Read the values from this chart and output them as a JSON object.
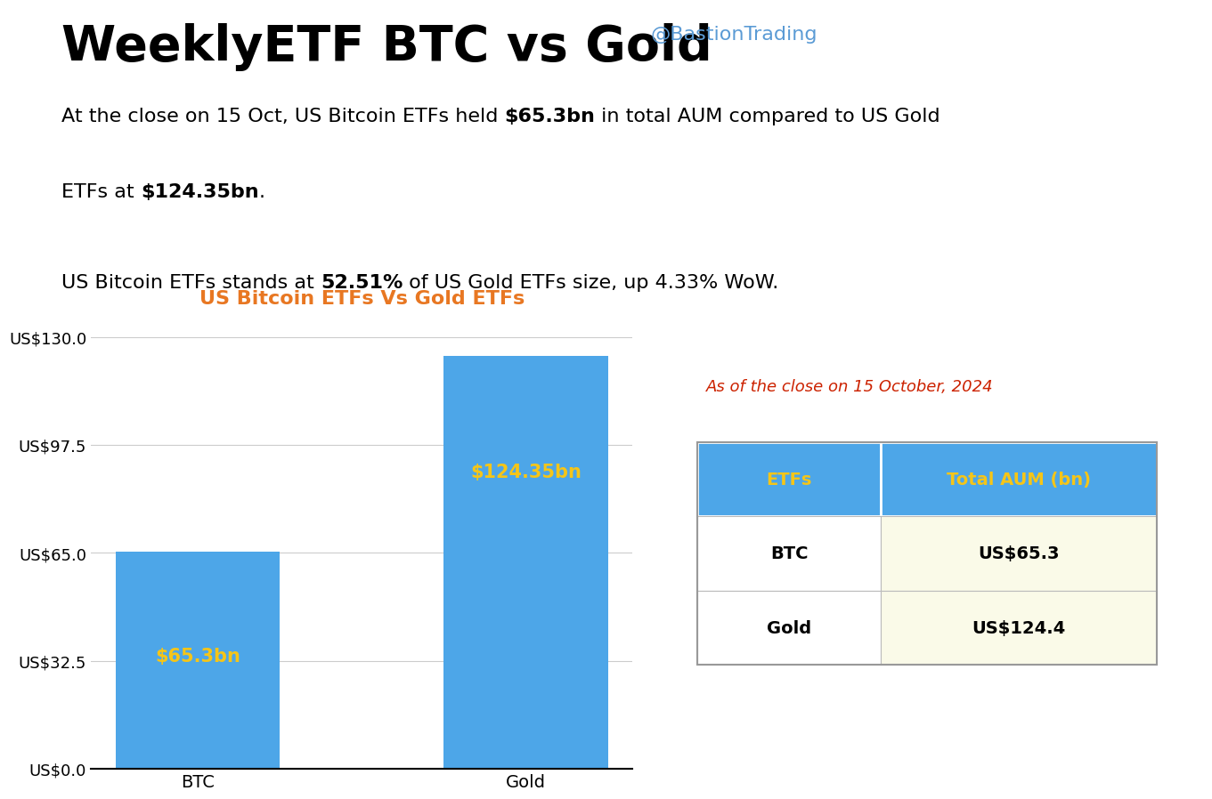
{
  "title": "WeeklyETF BTC vs Gold",
  "twitter": "@BastionTrading",
  "chart_title": "US Bitcoin ETFs Vs Gold ETFs",
  "categories": [
    "BTC",
    "Gold"
  ],
  "values": [
    65.3,
    124.35
  ],
  "bar_labels": [
    "$65.3bn",
    "$124.35bn"
  ],
  "bar_color": "#4DA6E8",
  "label_color": "#F5C518",
  "chart_title_color": "#E87722",
  "yticks": [
    0.0,
    32.5,
    65.0,
    97.5,
    130.0
  ],
  "ytick_labels": [
    "US$0.0",
    "US$32.5",
    "US$65.0",
    "US$97.5",
    "US$130.0"
  ],
  "ylim": [
    0,
    135
  ],
  "table_caption": "As of the close on 15 October, 2024",
  "table_caption_color": "#CC2200",
  "table_header_bg": "#4DA6E8",
  "table_header_text_color": "#F5C518",
  "table_cell_bg": "#FAFAE8",
  "table_headers": [
    "ETFs",
    "Total AUM (bn)"
  ],
  "table_rows": [
    [
      "BTC",
      "US$65.3"
    ],
    [
      "Gold",
      "US$124.4"
    ]
  ],
  "bg_color": "#FFFFFF",
  "title_color": "#000000",
  "twitter_color": "#5B9BD5",
  "text_color": "#000000",
  "grid_color": "#CCCCCC",
  "body_fontsize": 16,
  "title_fontsize": 40
}
